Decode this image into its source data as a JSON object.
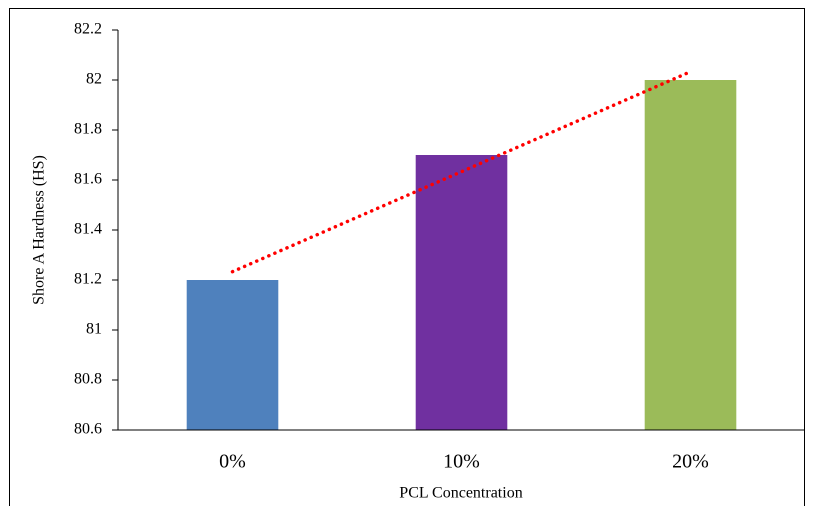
{
  "chart_data": {
    "type": "bar",
    "x_label": "PCL Concentration",
    "y_label": "Shore A Hardness (HS)",
    "categories": [
      "0%",
      "10%",
      "20%"
    ],
    "values": [
      81.2,
      81.7,
      82.0
    ],
    "colors": [
      "#4f81bd",
      "#7030a0",
      "#9bbb59"
    ],
    "ylim": [
      80.6,
      82.2
    ],
    "yticks": [
      80.6,
      80.8,
      81,
      81.2,
      81.4,
      81.6,
      81.8,
      82,
      82.2
    ],
    "trendline": {
      "type": "linear",
      "color": "#ff0000"
    }
  }
}
